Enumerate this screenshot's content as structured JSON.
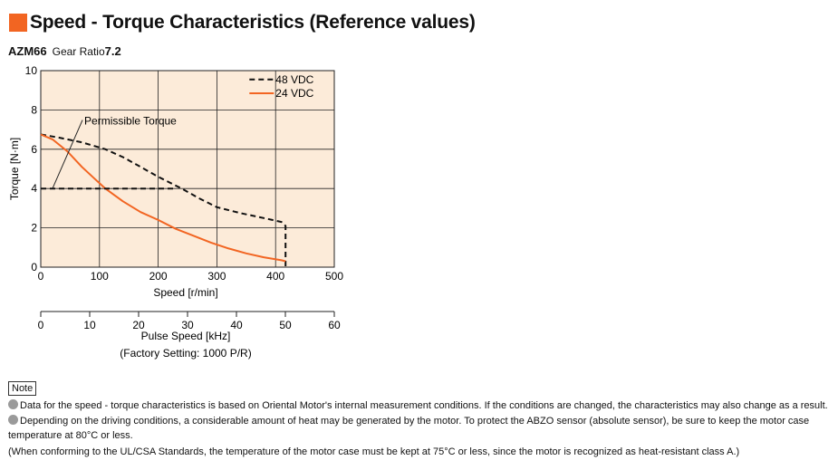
{
  "header": {
    "title": "Speed - Torque Characteristics (Reference values)",
    "model": "AZM66",
    "gear_ratio_label": "Gear Ratio",
    "gear_ratio_value": "7.2"
  },
  "chart_data": {
    "type": "line",
    "xlabel": "Speed [r/min]",
    "ylabel": "Torque [N·m]",
    "xlim": [
      0,
      500
    ],
    "ylim": [
      0,
      10
    ],
    "xticks": [
      0,
      100,
      200,
      300,
      400,
      500
    ],
    "yticks": [
      0,
      2,
      4,
      6,
      8,
      10
    ],
    "grid": true,
    "background": "#fcebd9",
    "secondary_axis": {
      "label": "Pulse Speed [kHz]",
      "sublabel": "(Factory Setting: 1000 P/R)",
      "ticks": [
        0,
        10,
        20,
        30,
        40,
        50,
        60
      ],
      "range": [
        0,
        60
      ]
    },
    "series": [
      {
        "name": "48 VDC",
        "style": "dashed",
        "color": "#111111",
        "x": [
          0,
          30,
          70,
          110,
          140,
          170,
          200,
          240,
          270,
          300,
          340,
          380,
          410,
          417,
          417
        ],
        "y": [
          6.75,
          6.6,
          6.35,
          6.0,
          5.6,
          5.1,
          4.6,
          4.0,
          3.5,
          3.05,
          2.75,
          2.5,
          2.3,
          2.1,
          0
        ]
      },
      {
        "name": "24 VDC",
        "style": "solid",
        "color": "#f26522",
        "x": [
          0,
          20,
          45,
          70,
          90,
          110,
          140,
          170,
          200,
          230,
          260,
          290,
          320,
          350,
          380,
          410,
          417
        ],
        "y": [
          6.75,
          6.5,
          5.9,
          5.1,
          4.55,
          4.0,
          3.35,
          2.8,
          2.4,
          1.95,
          1.6,
          1.25,
          0.95,
          0.7,
          0.5,
          0.35,
          0.3
        ]
      },
      {
        "name": "Permissible Torque",
        "style": "dashed",
        "color": "#111111",
        "x": [
          0,
          230
        ],
        "y": [
          4,
          4
        ]
      }
    ],
    "annotations": [
      {
        "text": "Permissible Torque",
        "x": 105,
        "y": 7.3
      }
    ],
    "legend": "top-right"
  },
  "notes": {
    "label": "Note",
    "items": [
      "Data for the speed - torque characteristics is based on Oriental Motor's internal measurement conditions. If the conditions are changed, the characteristics may also change as a result.",
      "Depending on the driving conditions, a considerable amount of heat may be generated by the motor. To protect the ABZO sensor (absolute sensor), be sure to keep the motor case temperature at 80°C or less."
    ],
    "footnote": "(When conforming to the UL/CSA Standards, the temperature of the motor case must be kept at 75°C or less, since the motor is recognized as heat-resistant class A.)"
  }
}
